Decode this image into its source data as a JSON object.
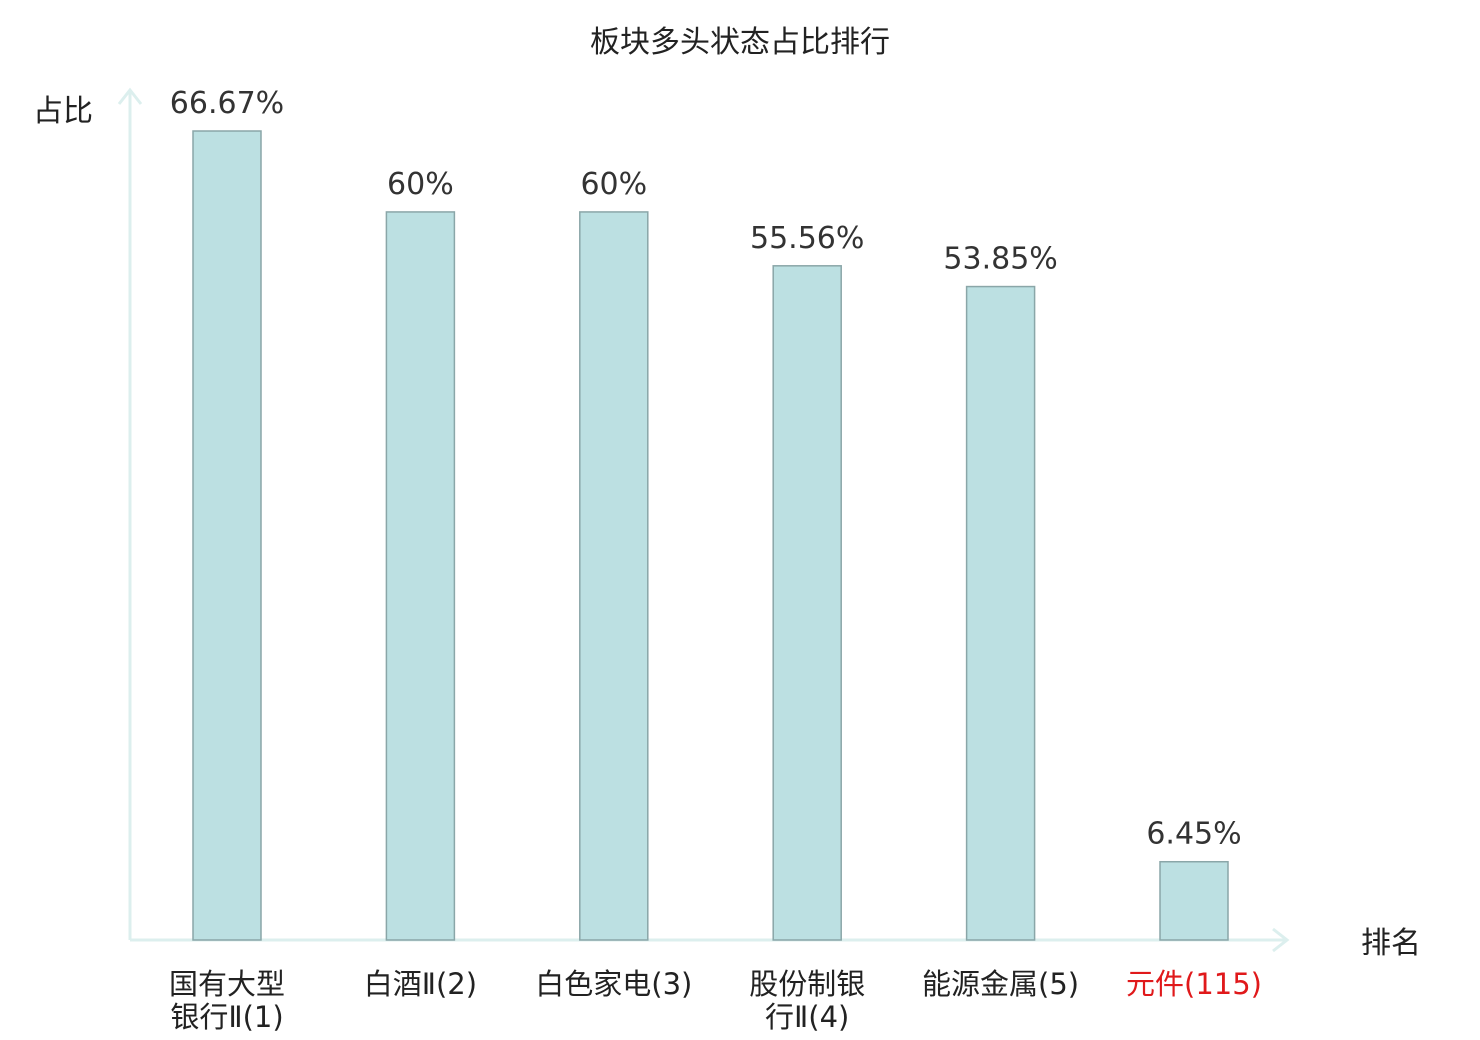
{
  "chart_data": {
    "type": "bar",
    "title": "板块多头状态占比排行",
    "ylabel": "占比",
    "xlabel": "排名",
    "ylim": [
      0,
      70
    ],
    "categories": [
      {
        "lines": [
          "国有大型",
          "银行Ⅱ(1)"
        ],
        "highlight": false
      },
      {
        "lines": [
          "白酒Ⅱ(2)"
        ],
        "highlight": false
      },
      {
        "lines": [
          "白色家电(3)"
        ],
        "highlight": false
      },
      {
        "lines": [
          "股份制银",
          "行Ⅱ(4)"
        ],
        "highlight": false
      },
      {
        "lines": [
          "能源金属(5)"
        ],
        "highlight": false
      },
      {
        "lines": [
          "元件(115)"
        ],
        "highlight": true
      }
    ],
    "values": [
      66.67,
      60,
      60,
      55.56,
      53.85,
      6.45
    ],
    "value_labels": [
      "66.67%",
      "60%",
      "60%",
      "55.56%",
      "53.85%",
      "6.45%"
    ],
    "highlight_color": "#e0191b",
    "bar_color": "#bce0e2",
    "bar_edge_color": "#8aa6a8",
    "axis_color": "#dcefee",
    "grid": false
  }
}
